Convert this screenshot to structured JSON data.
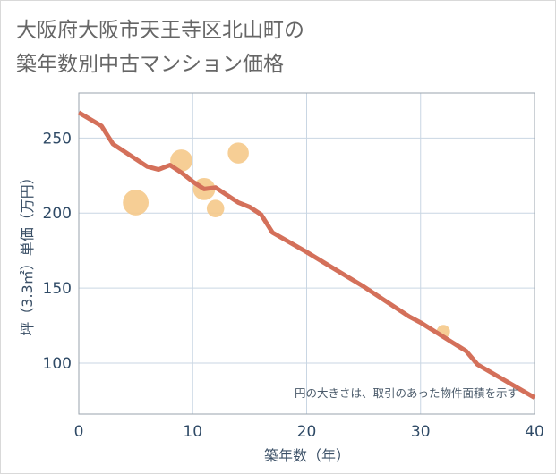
{
  "title_line1": "大阪府大阪市天王寺区北山町の",
  "title_line2": "築年数別中古マンション価格",
  "chart_data": {
    "type": "scatter+line",
    "title": "大阪府大阪市天王寺区北山町の築年数別中古マンション価格",
    "xlabel": "築年数（年）",
    "ylabel": "坪（3.3㎡）単価（万円）",
    "xlim": [
      0,
      40
    ],
    "ylim": [
      66,
      280
    ],
    "xticks": [
      0,
      10,
      20,
      30,
      40
    ],
    "yticks": [
      100,
      150,
      200,
      250
    ],
    "grid": true,
    "annotation": "円の大きさは、取引のあった物件面積を示す",
    "line": {
      "name": "trend",
      "color": "#d4705a",
      "x": [
        0,
        2,
        3,
        4,
        5,
        6,
        7,
        8,
        9,
        10,
        11,
        12,
        13,
        14,
        15,
        16,
        17,
        20,
        25,
        29,
        30,
        34,
        35,
        40
      ],
      "y": [
        267,
        258,
        246,
        241,
        236,
        231,
        229,
        232,
        227,
        221,
        216,
        217,
        212,
        207,
        204,
        199,
        187,
        174,
        151,
        131,
        127,
        108,
        99,
        77
      ]
    },
    "bubbles": {
      "color": "#f5c98a",
      "points": [
        {
          "x": 5,
          "y": 207,
          "size": 3
        },
        {
          "x": 9,
          "y": 235,
          "size": 2.4
        },
        {
          "x": 11,
          "y": 216,
          "size": 2.4
        },
        {
          "x": 12,
          "y": 203,
          "size": 1.6
        },
        {
          "x": 14,
          "y": 240,
          "size": 2.2
        },
        {
          "x": 32,
          "y": 121,
          "size": 0.9
        }
      ]
    }
  }
}
